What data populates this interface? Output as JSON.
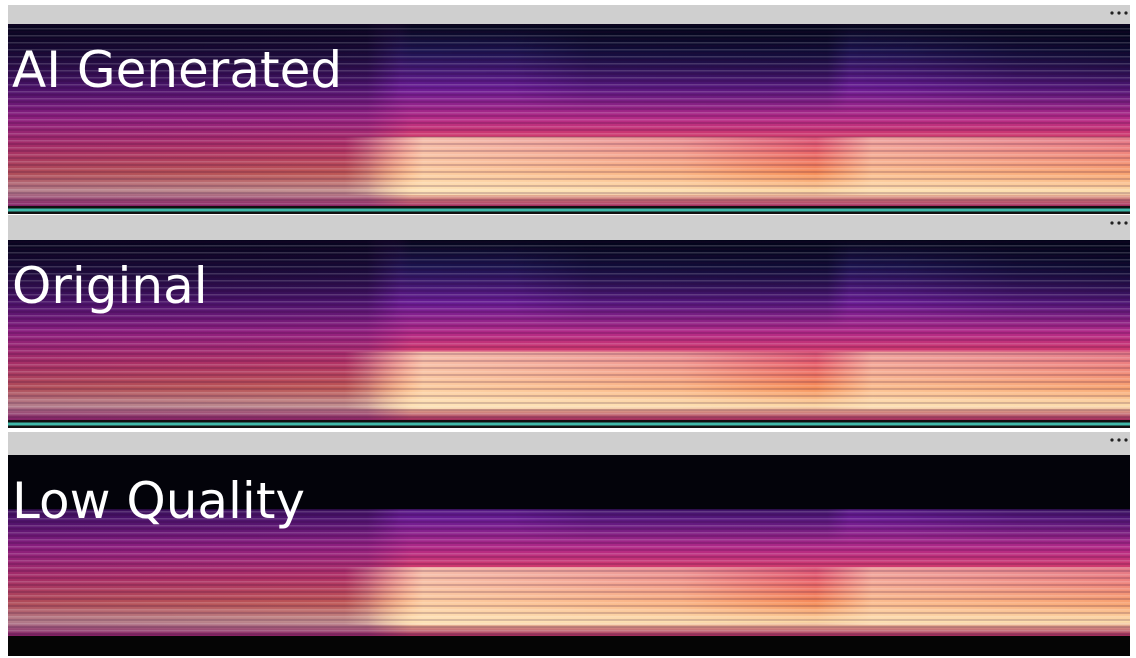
{
  "panels": [
    {
      "label": "AI Generated"
    },
    {
      "label": "Original"
    },
    {
      "label": "Low Quality"
    }
  ]
}
